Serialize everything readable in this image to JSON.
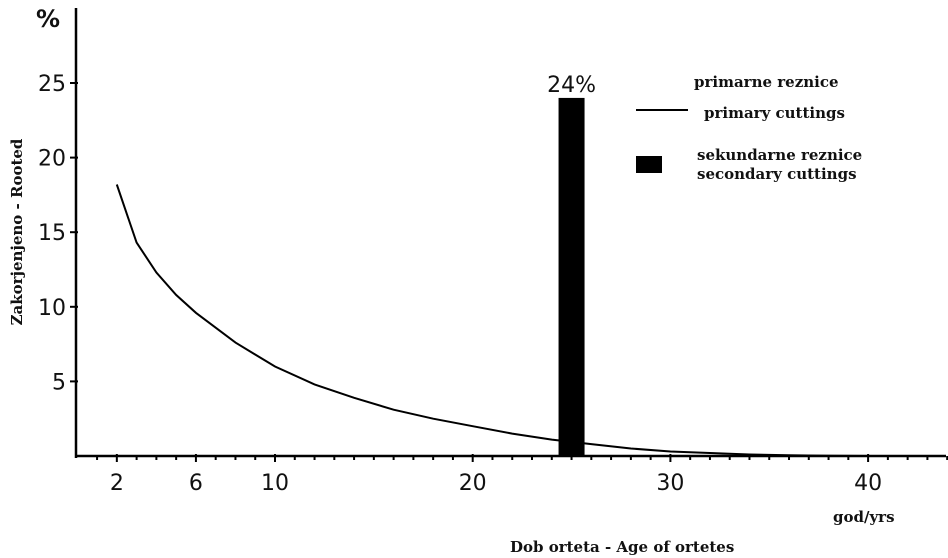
{
  "chart_data": {
    "type": "line",
    "y_unit": "%",
    "ylabel": "Zakorjenjeno - Rooted",
    "xlabel": "Dob orteta - Age of ortetes",
    "x_unit": "god/yrs",
    "xlim": [
      0,
      44
    ],
    "ylim": [
      0,
      27
    ],
    "x_ticks": [
      2,
      6,
      10,
      20,
      30,
      40
    ],
    "y_ticks": [
      5,
      10,
      15,
      20,
      25
    ],
    "series": [
      {
        "name": "primary cuttings",
        "style": "line",
        "x": [
          2,
          3,
          4,
          5,
          6,
          8,
          10,
          12,
          14,
          16,
          18,
          20,
          22,
          24,
          26,
          28,
          30,
          32,
          34,
          36,
          38,
          40
        ],
        "y": [
          18.2,
          14.3,
          12.3,
          10.8,
          9.6,
          7.6,
          6.0,
          4.8,
          3.9,
          3.1,
          2.5,
          2.0,
          1.5,
          1.1,
          0.8,
          0.5,
          0.3,
          0.2,
          0.1,
          0.05,
          0.02,
          0
        ]
      },
      {
        "name": "secondary cuttings",
        "style": "bar",
        "x": 25,
        "y": 24,
        "label": "24%"
      }
    ],
    "legend": {
      "placement": "top-right",
      "entries": [
        {
          "line1": "primarne reznice",
          "line2": "primary cuttings",
          "marker": "line"
        },
        {
          "line1": "sekundarne reznice",
          "line2": "secondary cuttings",
          "marker": "box"
        }
      ]
    },
    "colors": {
      "line": "#000000",
      "bar": "#000000"
    }
  }
}
